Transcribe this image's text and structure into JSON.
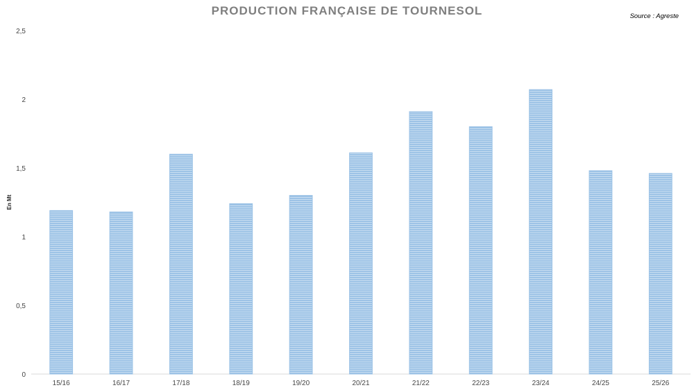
{
  "chart_data": {
    "type": "bar",
    "title": "PRODUCTION FRANÇAISE DE TOURNESOL",
    "source": "Source : Agreste",
    "ylabel": "En Mt",
    "xlabel": "",
    "ylim": [
      0,
      2.5
    ],
    "ytick_labels": [
      "0",
      "0,5",
      "1",
      "1,5",
      "2",
      "2,5"
    ],
    "categories": [
      "15/16",
      "16/17",
      "17/18",
      "18/19",
      "19/20",
      "20/21",
      "21/22",
      "22/23",
      "23/24",
      "24/25",
      "25/26"
    ],
    "values": [
      1.19,
      1.18,
      1.6,
      1.24,
      1.3,
      1.61,
      1.91,
      1.8,
      2.07,
      1.48,
      1.46
    ],
    "bar_color": "#9dc3e6",
    "bar_stripe_color": "#ffffff",
    "grid": false,
    "legend": "none"
  }
}
